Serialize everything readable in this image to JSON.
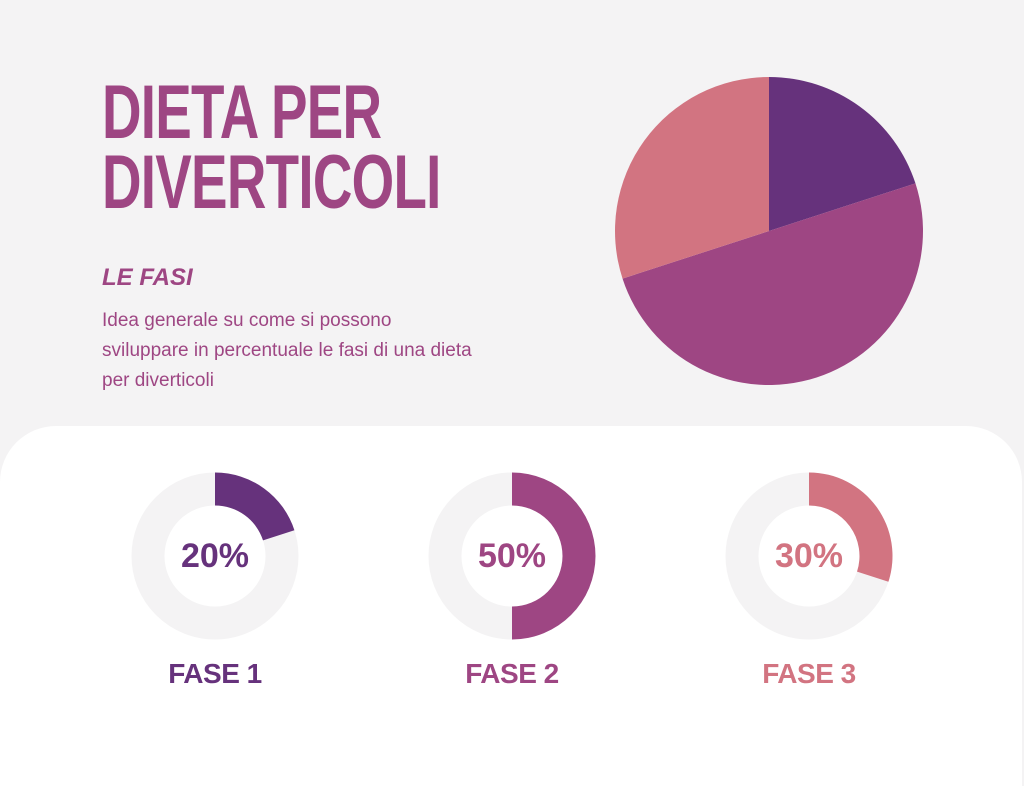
{
  "header": {
    "title_line1": "DIETA PER",
    "title_line2": "DIVERTICOLI",
    "subtitle": "LE FASI",
    "description": "Idea generale su come si possono sviluppare in percentuale le fasi di una dieta per diverticoli"
  },
  "colors": {
    "background": "#f4f3f4",
    "panel": "#ffffff",
    "title": "#9e4683",
    "fase1": "#66327c",
    "fase2": "#9e4683",
    "fase3": "#d27481",
    "track": "#f4f3f4"
  },
  "phases": [
    {
      "label": "FASE 1",
      "value_text": "20%",
      "value": 20,
      "color": "#66327c"
    },
    {
      "label": "FASE 2",
      "value_text": "50%",
      "value": 50,
      "color": "#9e4683"
    },
    {
      "label": "FASE 3",
      "value_text": "30%",
      "value": 30,
      "color": "#d27481"
    }
  ],
  "chart_data": [
    {
      "type": "pie",
      "title": "",
      "categories": [
        "FASE 1",
        "FASE 2",
        "FASE 3"
      ],
      "values": [
        20,
        50,
        30
      ],
      "colors": [
        "#66327c",
        "#9e4683",
        "#d27481"
      ],
      "start_angle": "12 o'clock, clockwise",
      "legend": "none"
    },
    {
      "type": "pie",
      "subtype": "donut",
      "title": "FASE 1",
      "categories": [
        "FASE 1",
        "rest"
      ],
      "values": [
        20,
        80
      ],
      "center_label": "20%"
    },
    {
      "type": "pie",
      "subtype": "donut",
      "title": "FASE 2",
      "categories": [
        "FASE 2",
        "rest"
      ],
      "values": [
        50,
        50
      ],
      "center_label": "50%"
    },
    {
      "type": "pie",
      "subtype": "donut",
      "title": "FASE 3",
      "categories": [
        "FASE 3",
        "rest"
      ],
      "values": [
        30,
        70
      ],
      "center_label": "30%"
    }
  ]
}
